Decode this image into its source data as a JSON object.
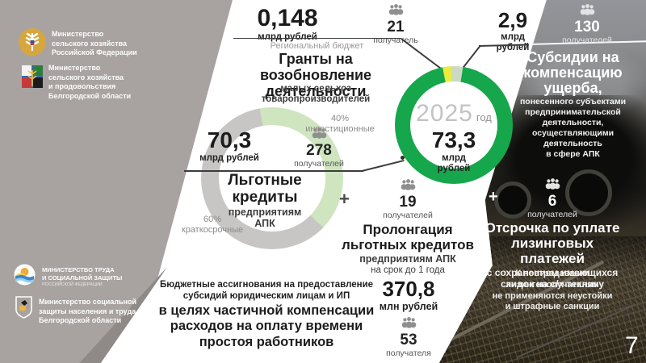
{
  "slide": {
    "page_number": "7"
  },
  "logos": {
    "agro_rf": {
      "text": "Министерство\nсельского хозяйства\nРоссийской Федерации"
    },
    "agro_belgorod": {
      "text": "Министерство\nсельского хозяйства\nи продовольствия\nБелгородской области"
    },
    "labor_rf": {
      "line1": "МИНИСТЕРСТВО ТРУДА",
      "line2": "И СОЦИАЛЬНОЙ ЗАЩИТЫ",
      "line3": "РОССИЙСКОЙ ФЕДЕРАЦИИ"
    },
    "social_belgorod": {
      "text": "Министерство социальной\nзащиты населения и труда\nБелгородской области"
    }
  },
  "grants": {
    "value": "0,148",
    "unit": "млрд рублей",
    "budget_note": "Региональный бюджет",
    "recipients": "21",
    "recipients_label": "получатель",
    "title": "Гранты на возобновление\nдеятельности",
    "subtitle": "малых сельхоз товаропроизводителей"
  },
  "damage_subsidy": {
    "value": "2,9",
    "unit": "млрд рублей",
    "recipients": "130",
    "recipients_label": "получателей",
    "title": "Субсидии на\nкомпенсацию\nущерба,",
    "details": "понесенного субъектами\nпредпринимательской\nдеятельности,\nосуществляющими\nдеятельность\nв сфере АПК"
  },
  "total": {
    "year": "2025",
    "year_label": "год",
    "value": "73,3",
    "unit": "млрд\nрублей"
  },
  "credits": {
    "value": "70,3",
    "unit": "млрд рублей",
    "recipients": "278",
    "recipients_label": "получателей",
    "title": "Льготные\nкредиты",
    "subtitle": "предприятиям\nАПК",
    "investment_pct": "40%",
    "investment_label": "инвестиционные",
    "short_term_pct": "60%",
    "short_term_label": "краткосрочные"
  },
  "prolongation": {
    "plus": "+",
    "recipients": "19",
    "recipients_label": "получателей",
    "title": "Пролонгация\nльготных кредитов",
    "subtitle": "предприятиям АПК",
    "note": "на срок до 1 года"
  },
  "leasing": {
    "plus": "+",
    "recipients": "6",
    "recipients_label": "получателей",
    "title": "Отсрочка по уплате\nлизинговых платежей",
    "subtitle": "с сохранением имеющихся\nскидок на с/х технику",
    "footnote": "К пострадавшим лизингополучателям\nне применяются неустойки\nи штрафные санкции"
  },
  "idle_compensation": {
    "description_small": "Бюджетные ассигнования на предоставление\nсубсидий юридическим лицам и ИП",
    "description_large": "в целях частичной компенсации\nрасходов на оплату времени\nпростоя работников",
    "value": "370,8",
    "unit": "млн рублей",
    "recipients": "53",
    "recipients_label": "получателя"
  },
  "colors": {
    "green": "#16a74c",
    "pale_green": "#ccd9c3",
    "yellow": "#eeeb3b",
    "credit_green": "#cfe5c0",
    "ring_gray": "#c8c6c5",
    "panel_gray": "#a8a3a1"
  },
  "chart_data": [
    {
      "type": "pie",
      "variant": "donut",
      "title": "2025 год",
      "center_value": "73,3",
      "center_unit": "млрд рублей",
      "unit": "млрд рублей",
      "slices": [
        {
          "label": "Льготные кредиты предприятиям АПК",
          "value": 70.3,
          "color": "#16a74c"
        },
        {
          "label": "Субсидии на компенсацию ущерба",
          "value": 2.9,
          "color": "#ccd9c3"
        },
        {
          "label": "Гранты на возобновление деятельности",
          "value": 0.148,
          "color": "#eeeb3b"
        }
      ]
    },
    {
      "type": "pie",
      "variant": "donut",
      "title": "Льготные кредиты предприятиям АПК",
      "center_value": "70,3",
      "center_unit": "млрд рублей",
      "unit": "%",
      "slices": [
        {
          "label": "краткосрочные",
          "value": 60,
          "color": "#c8c6c5"
        },
        {
          "label": "инвестиционные",
          "value": 40,
          "color": "#cfe5c0"
        }
      ]
    }
  ]
}
